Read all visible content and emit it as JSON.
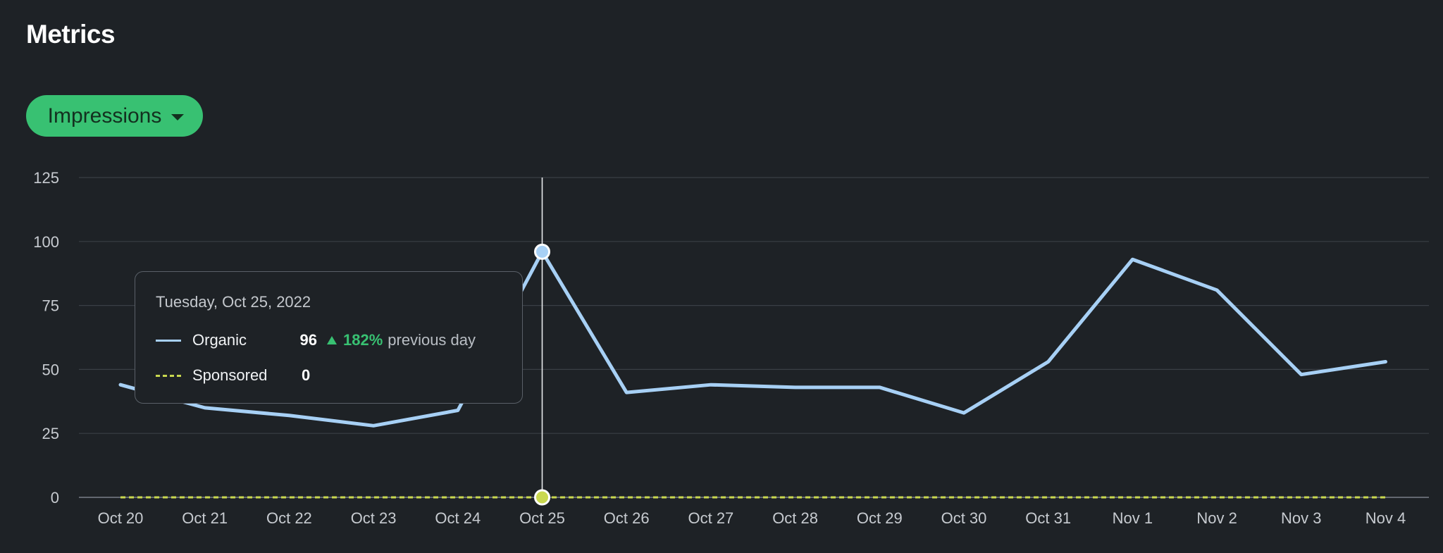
{
  "header": {
    "title": "Metrics"
  },
  "metric_selector": {
    "label": "Impressions"
  },
  "tooltip": {
    "date": "Tuesday, Oct 25, 2022",
    "rows": [
      {
        "name": "Organic",
        "value": "96",
        "change": "182%",
        "suffix": "previous day"
      },
      {
        "name": "Sponsored",
        "value": "0"
      }
    ]
  },
  "colors": {
    "organic": "#a7d0f5",
    "sponsored": "#c9d84f",
    "accent": "#38c172"
  },
  "chart_data": {
    "type": "line",
    "title": "",
    "xlabel": "",
    "ylabel": "",
    "categories": [
      "Oct 20",
      "Oct 21",
      "Oct 22",
      "Oct 23",
      "Oct 24",
      "Oct 25",
      "Oct 26",
      "Oct 27",
      "Oct 28",
      "Oct 29",
      "Oct 30",
      "Oct 31",
      "Nov 1",
      "Nov 2",
      "Nov 3",
      "Nov 4"
    ],
    "series": [
      {
        "name": "Organic",
        "style": "solid",
        "values": [
          44,
          35,
          32,
          28,
          34,
          96,
          41,
          44,
          43,
          43,
          33,
          53,
          93,
          81,
          48,
          53
        ]
      },
      {
        "name": "Sponsored",
        "style": "dashed",
        "values": [
          0,
          0,
          0,
          0,
          0,
          0,
          0,
          0,
          0,
          0,
          0,
          0,
          0,
          0,
          0,
          0
        ]
      }
    ],
    "yticks": [
      "0",
      "25",
      "50",
      "75",
      "100",
      "125"
    ],
    "ylim": [
      0,
      125
    ],
    "grid": true,
    "highlight_index": 5
  }
}
